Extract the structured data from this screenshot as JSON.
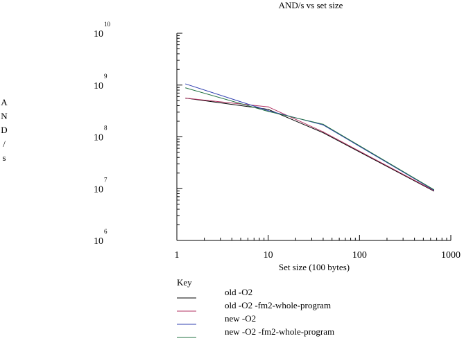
{
  "chart_data": {
    "type": "line",
    "title": "AND/s vs set size",
    "xlabel": "Set size (100 bytes)",
    "ylabel": "AND/s",
    "x_scale": "log",
    "y_scale": "log",
    "xlim": [
      1,
      1000
    ],
    "ylim": [
      1000000,
      10000000000
    ],
    "x_ticks": [
      "1",
      "10",
      "100",
      "1000"
    ],
    "y_ticks": [
      {
        "base": "10",
        "exp": "6"
      },
      {
        "base": "10",
        "exp": "7"
      },
      {
        "base": "10",
        "exp": "8"
      },
      {
        "base": "10",
        "exp": "9"
      },
      {
        "base": "10",
        "exp": "10"
      }
    ],
    "legend_title": "Key",
    "legend_position": "bottom",
    "grid": false,
    "series": [
      {
        "name": "old -O2",
        "color": "#000000",
        "points": [
          [
            1.25,
            560000000
          ],
          [
            10,
            340000000
          ],
          [
            40,
            120000000
          ],
          [
            650,
            9000000
          ]
        ]
      },
      {
        "name": "old -O2 -fm2-whole-program",
        "color": "#b03060",
        "points": [
          [
            1.25,
            560000000
          ],
          [
            10,
            380000000
          ],
          [
            40,
            125000000
          ],
          [
            650,
            9200000
          ]
        ]
      },
      {
        "name": "new -O2",
        "color": "#3040b0",
        "points": [
          [
            1.25,
            1050000000
          ],
          [
            10,
            320000000
          ],
          [
            40,
            170000000
          ],
          [
            650,
            9400000
          ]
        ]
      },
      {
        "name": "new -O2 -fm2-whole-program",
        "color": "#207040",
        "points": [
          [
            1.25,
            880000000
          ],
          [
            10,
            310000000
          ],
          [
            40,
            175000000
          ],
          [
            650,
            9600000
          ]
        ]
      }
    ]
  }
}
